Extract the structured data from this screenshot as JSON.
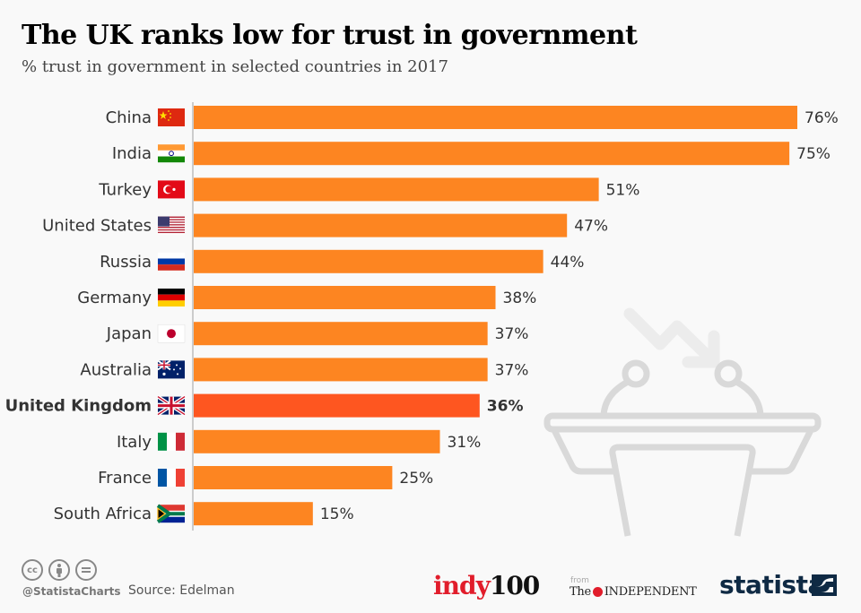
{
  "header": {
    "title": "The UK ranks low for trust in government",
    "subtitle": "% trust in government in selected countries in 2017"
  },
  "colors": {
    "bar": "#fd8521",
    "highlight": "#fe5620",
    "axis": "#cccccc",
    "label": "#333333",
    "background": "#f9f9f9"
  },
  "chart_data": {
    "type": "bar",
    "orientation": "horizontal",
    "title": "The UK ranks low for trust in government",
    "subtitle": "% trust in government in selected countries in 2017",
    "xlabel": "",
    "ylabel": "",
    "unit": "%",
    "xlim": [
      0,
      76
    ],
    "grid": false,
    "categories": [
      "China",
      "India",
      "Turkey",
      "United States",
      "Russia",
      "Germany",
      "Japan",
      "Australia",
      "United Kingdom",
      "Italy",
      "France",
      "South Africa"
    ],
    "values": [
      76,
      75,
      51,
      47,
      44,
      38,
      37,
      37,
      36,
      31,
      25,
      15
    ],
    "data_labels": [
      "76%",
      "75%",
      "51%",
      "47%",
      "44%",
      "38%",
      "37%",
      "37%",
      "36%",
      "31%",
      "25%",
      "15%"
    ],
    "highlighted": [
      "United Kingdom"
    ],
    "flag_icons": [
      "china-flag-icon",
      "india-flag-icon",
      "turkey-flag-icon",
      "united-states-flag-icon",
      "russia-flag-icon",
      "germany-flag-icon",
      "japan-flag-icon",
      "australia-flag-icon",
      "united-kingdom-flag-icon",
      "italy-flag-icon",
      "france-flag-icon",
      "south-africa-flag-icon"
    ]
  },
  "decoration": {
    "icon": "podium-declining-arrow-icon"
  },
  "footer": {
    "license_icons": [
      "cc-icon",
      "attribution-icon",
      "no-derivatives-icon"
    ],
    "cc_text": "cc",
    "handle": "@StatistaCharts",
    "source": "Source: Edelman",
    "partner_logo_part1": "indy",
    "partner_logo_part2": "100",
    "from_label": "from",
    "independent_the": "The",
    "independent_name": "INDEPENDENT",
    "brand": "statista"
  }
}
